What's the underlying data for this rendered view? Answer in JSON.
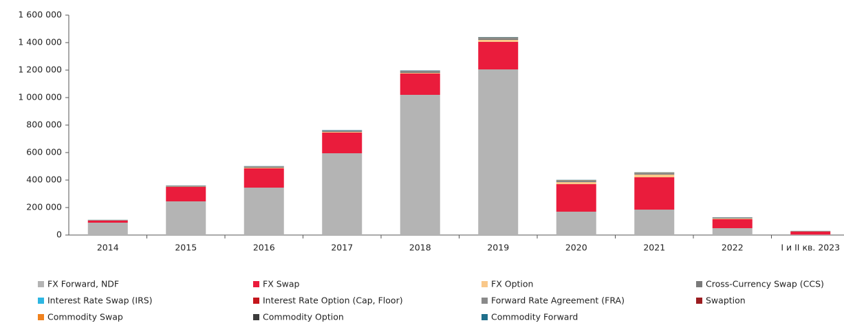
{
  "chart_data": {
    "type": "stacked_bar",
    "categories": [
      "2014",
      "2015",
      "2016",
      "2017",
      "2018",
      "2019",
      "2020",
      "2021",
      "2022",
      "I и II кв. 2023"
    ],
    "ylim": [
      0,
      1600000
    ],
    "yticks": [
      0,
      {
        "value": 200000,
        "label": "200 000"
      },
      {
        "value": 400000,
        "label": "400 000"
      },
      {
        "value": 600000,
        "label": "600 000"
      },
      {
        "value": 800000,
        "label": "800 000"
      },
      {
        "value": 1000000,
        "label": "1 000 000"
      },
      {
        "value": 1200000,
        "label": "1 200 000"
      },
      {
        "value": 1400000,
        "label": "1 400 000"
      },
      {
        "value": 1600000,
        "label": "1 600 000"
      }
    ],
    "series": [
      {
        "name": "FX Forward, NDF",
        "color": "#b4b4b4",
        "values": [
          90000,
          245000,
          345000,
          595000,
          1020000,
          1205000,
          170000,
          185000,
          50000,
          3000
        ]
      },
      {
        "name": "FX Swap",
        "color": "#ea1c3c",
        "values": [
          15000,
          105000,
          140000,
          150000,
          155000,
          200000,
          200000,
          235000,
          65000,
          22000
        ]
      },
      {
        "name": "FX Option",
        "color": "#f9c88a",
        "values": [
          1000,
          2000,
          5000,
          5000,
          5000,
          15000,
          15000,
          20000,
          5000,
          1000
        ]
      },
      {
        "name": "Cross-Currency Swap (CCS)",
        "color": "#7a7a7a",
        "values": [
          3000,
          5000,
          5000,
          5000,
          10000,
          12000,
          8000,
          8000,
          4000,
          3000
        ]
      },
      {
        "name": "Interest Rate Swap (IRS)",
        "color": "#2db6e2",
        "values": [
          500,
          1000,
          1000,
          2000,
          1000,
          1000,
          1000,
          1000,
          500,
          200
        ]
      },
      {
        "name": "Interest Rate Option (Cap, Floor)",
        "color": "#c4161c",
        "values": [
          200,
          300,
          500,
          500,
          500,
          500,
          500,
          500,
          300,
          100
        ]
      },
      {
        "name": "Forward Rate Agreement (FRA)",
        "color": "#8a8a8a",
        "values": [
          200,
          300,
          500,
          500,
          500,
          500,
          500,
          500,
          300,
          100
        ]
      },
      {
        "name": "Swaption",
        "color": "#9b1c20",
        "values": [
          100,
          200,
          300,
          300,
          300,
          300,
          300,
          300,
          200,
          100
        ]
      },
      {
        "name": "Commodity Swap",
        "color": "#f0821e",
        "values": [
          200,
          500,
          1000,
          1000,
          1000,
          2000,
          2000,
          2000,
          1000,
          300
        ]
      },
      {
        "name": "Commodity Option",
        "color": "#3c3c3c",
        "values": [
          200,
          500,
          1000,
          1000,
          1000,
          1000,
          1000,
          1000,
          500,
          200
        ]
      },
      {
        "name": "Commodity Forward",
        "color": "#1f6f8b",
        "values": [
          500,
          1000,
          2000,
          3000,
          3000,
          3000,
          3000,
          3000,
          2000,
          500
        ]
      }
    ]
  }
}
